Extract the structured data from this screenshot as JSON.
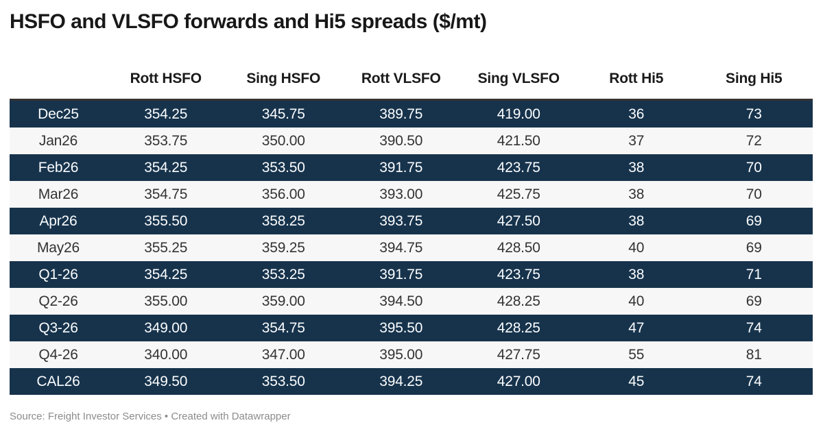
{
  "title": "HSFO and VLSFO forwards and Hi5 spreads ($/mt)",
  "footer": "Source: Freight Investor Services • Created with Datawrapper",
  "colors": {
    "row_dark": "#17334c",
    "row_light": "#f7f7f7",
    "row_dark_text": "#fbfdfe",
    "row_light_text": "#333333",
    "header_border": "#333333",
    "title_text": "#181818",
    "footer_text": "#8c8c8c",
    "background": "#ffffff"
  },
  "chart_data": {
    "type": "table",
    "title": "HSFO and VLSFO forwards and Hi5 spreads ($/mt)",
    "columns": [
      "",
      "Rott HSFO",
      "Sing HSFO",
      "Rott VLSFO",
      "Sing VLSFO",
      "Rott Hi5",
      "Sing Hi5"
    ],
    "rows": [
      [
        "Dec25",
        "354.25",
        "345.75",
        "389.75",
        "419.00",
        "36",
        "73"
      ],
      [
        "Jan26",
        "353.75",
        "350.00",
        "390.50",
        "421.50",
        "37",
        "72"
      ],
      [
        "Feb26",
        "354.25",
        "353.50",
        "391.75",
        "423.75",
        "38",
        "70"
      ],
      [
        "Mar26",
        "354.75",
        "356.00",
        "393.00",
        "425.75",
        "38",
        "70"
      ],
      [
        "Apr26",
        "355.50",
        "358.25",
        "393.75",
        "427.50",
        "38",
        "69"
      ],
      [
        "May26",
        "355.25",
        "359.25",
        "394.75",
        "428.50",
        "40",
        "69"
      ],
      [
        "Q1-26",
        "354.25",
        "353.25",
        "391.75",
        "423.75",
        "38",
        "71"
      ],
      [
        "Q2-26",
        "355.00",
        "359.00",
        "394.50",
        "428.25",
        "40",
        "69"
      ],
      [
        "Q3-26",
        "349.00",
        "354.75",
        "395.50",
        "428.25",
        "47",
        "74"
      ],
      [
        "Q4-26",
        "340.00",
        "347.00",
        "395.00",
        "427.75",
        "55",
        "81"
      ],
      [
        "CAL26",
        "349.50",
        "353.50",
        "394.25",
        "427.00",
        "45",
        "74"
      ]
    ],
    "layout": {
      "first_row_style": "dark",
      "alternating_rows": true,
      "alignment": "center",
      "grid": "off",
      "legend": "none"
    },
    "source_note": "Source: Freight Investor Services",
    "attribution": "Created with Datawrapper"
  }
}
